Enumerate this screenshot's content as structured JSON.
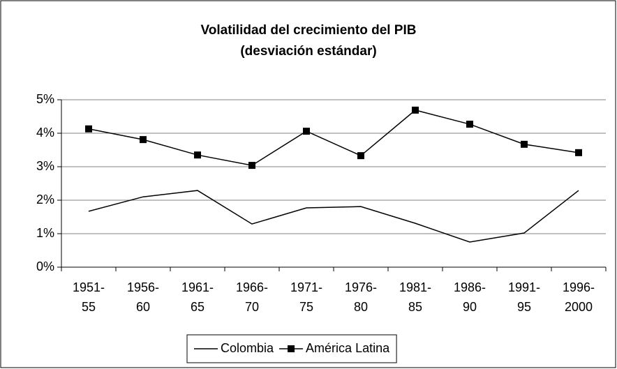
{
  "chart_data": {
    "type": "line",
    "title": "Volatilidad del crecimiento del PIB",
    "subtitle": "(desviación estándar)",
    "categories": [
      "1951-55",
      "1956-60",
      "1961-65",
      "1966-70",
      "1971-75",
      "1976-80",
      "1981-85",
      "1986-90",
      "1991-95",
      "1996-2000"
    ],
    "series": [
      {
        "name": "Colombia",
        "color": "#000000",
        "marker": "none",
        "values": [
          1.67,
          2.1,
          2.29,
          1.29,
          1.77,
          1.81,
          1.31,
          0.75,
          1.02,
          2.29
        ]
      },
      {
        "name": "América Latina",
        "color": "#000000",
        "marker": "square",
        "values": [
          4.13,
          3.81,
          3.35,
          3.04,
          4.06,
          3.33,
          4.69,
          4.27,
          3.67,
          3.42
        ]
      }
    ],
    "ylim": [
      0,
      5
    ],
    "yticks": [
      {
        "value": 0,
        "label": "0%"
      },
      {
        "value": 1,
        "label": "1%"
      },
      {
        "value": 2,
        "label": "2%"
      },
      {
        "value": 3,
        "label": "3%"
      },
      {
        "value": 4,
        "label": "4%"
      },
      {
        "value": 5,
        "label": "5%"
      }
    ],
    "grid": true,
    "legend": "bottom"
  }
}
